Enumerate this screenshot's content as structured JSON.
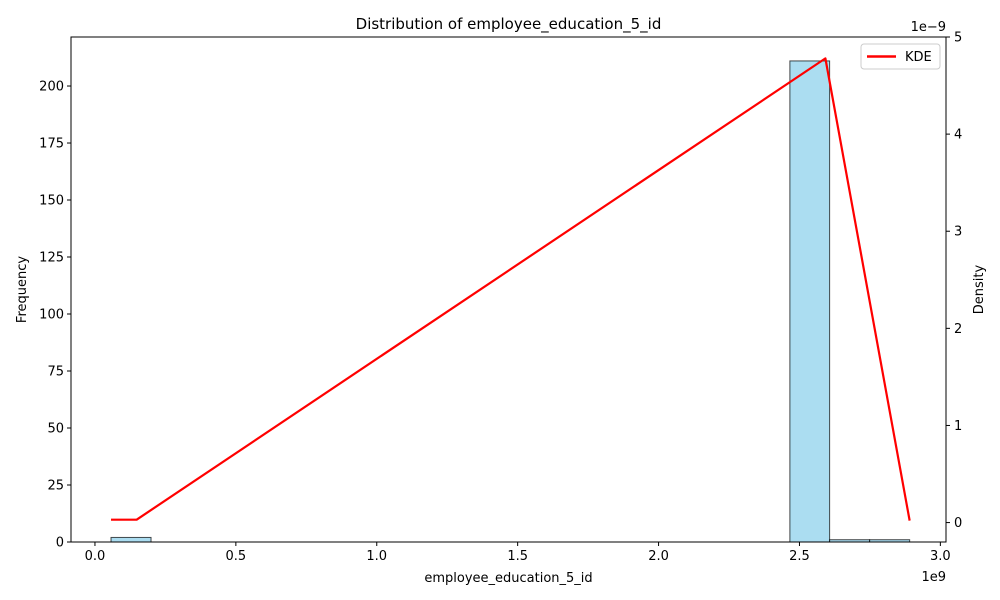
{
  "chart_data": {
    "type": "bar",
    "title": "Distribution of employee_education_5_id",
    "xlabel": "employee_education_5_id",
    "ylabel": "Frequency",
    "y2label": "Density",
    "x_multiplier": "1e9",
    "y2_multiplier": "1e−9",
    "xlim": [
      -0.085,
      3.02
    ],
    "ylim": [
      0,
      221.5
    ],
    "y2lim": [
      -0.2,
      5.0
    ],
    "xticks": [
      "0.0",
      "0.5",
      "1.0",
      "1.5",
      "2.0",
      "2.5",
      "3.0"
    ],
    "xtick_values": [
      0.0,
      0.5,
      1.0,
      1.5,
      2.0,
      2.5,
      3.0
    ],
    "yticks": [
      "0",
      "25",
      "50",
      "75",
      "100",
      "125",
      "150",
      "175",
      "200"
    ],
    "ytick_values": [
      0,
      25,
      50,
      75,
      100,
      125,
      150,
      175,
      200
    ],
    "y2ticks": [
      "0",
      "1",
      "2",
      "3",
      "4",
      "5"
    ],
    "y2tick_values": [
      0,
      1,
      2,
      3,
      4,
      5
    ],
    "histogram": {
      "bin_edges": [
        0.057,
        0.199,
        0.34,
        0.482,
        0.624,
        0.765,
        0.907,
        1.049,
        1.191,
        1.332,
        1.474,
        1.616,
        1.757,
        1.899,
        2.041,
        2.182,
        2.324,
        2.466,
        2.607,
        2.749,
        2.891
      ],
      "counts": [
        2,
        0,
        0,
        0,
        0,
        0,
        0,
        0,
        0,
        0,
        0,
        0,
        0,
        0,
        0,
        0,
        0,
        211,
        1,
        1
      ],
      "color": "#87CEEB",
      "edgecolor": "#000000"
    },
    "series": [
      {
        "name": "KDE",
        "color": "#FF0000",
        "x": [
          0.057,
          0.148,
          2.592,
          2.891
        ],
        "y": [
          0.03,
          0.03,
          4.78,
          0.02
        ]
      }
    ],
    "legend": {
      "position": "top-right"
    },
    "grid": false
  }
}
